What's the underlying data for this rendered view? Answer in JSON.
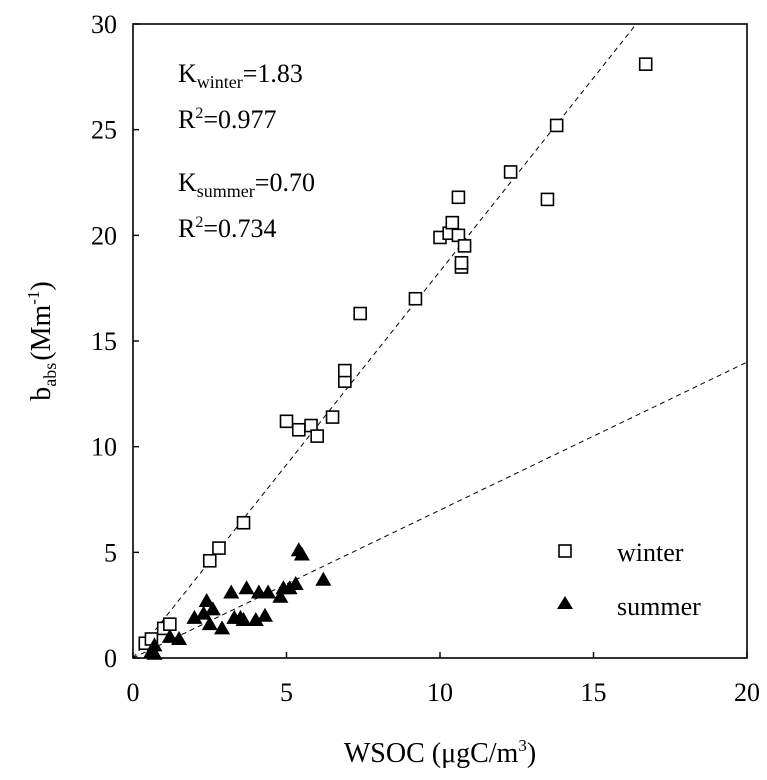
{
  "chart_data": {
    "type": "scatter",
    "xlabel": {
      "main": "WSOC (μgC/m",
      "sup": "3",
      "close": ")"
    },
    "ylabel": {
      "b": "b",
      "sub": "abs",
      "unit": "(Mm",
      "sup": "-1",
      "close": ")"
    },
    "xlim": [
      0,
      20
    ],
    "ylim": [
      0,
      30
    ],
    "x_ticks": [
      0,
      5,
      10,
      15,
      20
    ],
    "y_ticks": [
      0,
      5,
      10,
      15,
      20,
      25,
      30
    ],
    "grid": false,
    "legend_position": "bottom-right",
    "annotations": [
      {
        "main": "K",
        "sub": "winter",
        "rest": "=1.83"
      },
      {
        "main": "R",
        "sup": "2",
        "rest": "=0.977"
      },
      {
        "main": "K",
        "sub": "summer",
        "rest": "=0.70"
      },
      {
        "main": "R",
        "sup": "2",
        "rest": "=0.734"
      }
    ],
    "series": [
      {
        "name": "winter",
        "marker": "open-square",
        "slope": 1.83,
        "points": [
          [
            0.4,
            0.7
          ],
          [
            0.6,
            0.9
          ],
          [
            1.0,
            1.4
          ],
          [
            1.2,
            1.6
          ],
          [
            2.5,
            4.6
          ],
          [
            2.8,
            5.2
          ],
          [
            3.6,
            6.4
          ],
          [
            5.0,
            11.2
          ],
          [
            5.4,
            10.8
          ],
          [
            5.8,
            11.0
          ],
          [
            6.0,
            10.5
          ],
          [
            6.5,
            11.4
          ],
          [
            6.9,
            13.1
          ],
          [
            6.9,
            13.6
          ],
          [
            7.4,
            16.3
          ],
          [
            9.2,
            17.0
          ],
          [
            10.0,
            19.9
          ],
          [
            10.3,
            20.1
          ],
          [
            10.4,
            20.6
          ],
          [
            10.6,
            20.0
          ],
          [
            10.6,
            21.8
          ],
          [
            10.7,
            18.5
          ],
          [
            10.7,
            18.7
          ],
          [
            10.8,
            19.5
          ],
          [
            12.3,
            23.0
          ],
          [
            13.5,
            21.7
          ],
          [
            13.8,
            25.2
          ],
          [
            16.7,
            28.1
          ]
        ]
      },
      {
        "name": "summer",
        "marker": "filled-triangle",
        "slope": 0.7,
        "points": [
          [
            0.6,
            0.3
          ],
          [
            0.7,
            0.2
          ],
          [
            0.7,
            0.6
          ],
          [
            1.2,
            1.0
          ],
          [
            1.5,
            0.9
          ],
          [
            2.0,
            1.9
          ],
          [
            2.3,
            2.1
          ],
          [
            2.4,
            2.7
          ],
          [
            2.5,
            1.6
          ],
          [
            2.6,
            2.3
          ],
          [
            2.9,
            1.4
          ],
          [
            3.2,
            3.1
          ],
          [
            3.3,
            1.9
          ],
          [
            3.5,
            1.9
          ],
          [
            3.6,
            1.8
          ],
          [
            3.7,
            3.3
          ],
          [
            4.0,
            1.8
          ],
          [
            4.1,
            3.1
          ],
          [
            4.3,
            2.0
          ],
          [
            4.4,
            3.1
          ],
          [
            4.8,
            2.9
          ],
          [
            4.9,
            3.3
          ],
          [
            5.1,
            3.3
          ],
          [
            5.3,
            3.5
          ],
          [
            5.4,
            5.1
          ],
          [
            5.5,
            4.9
          ],
          [
            6.2,
            3.7
          ]
        ]
      }
    ]
  }
}
